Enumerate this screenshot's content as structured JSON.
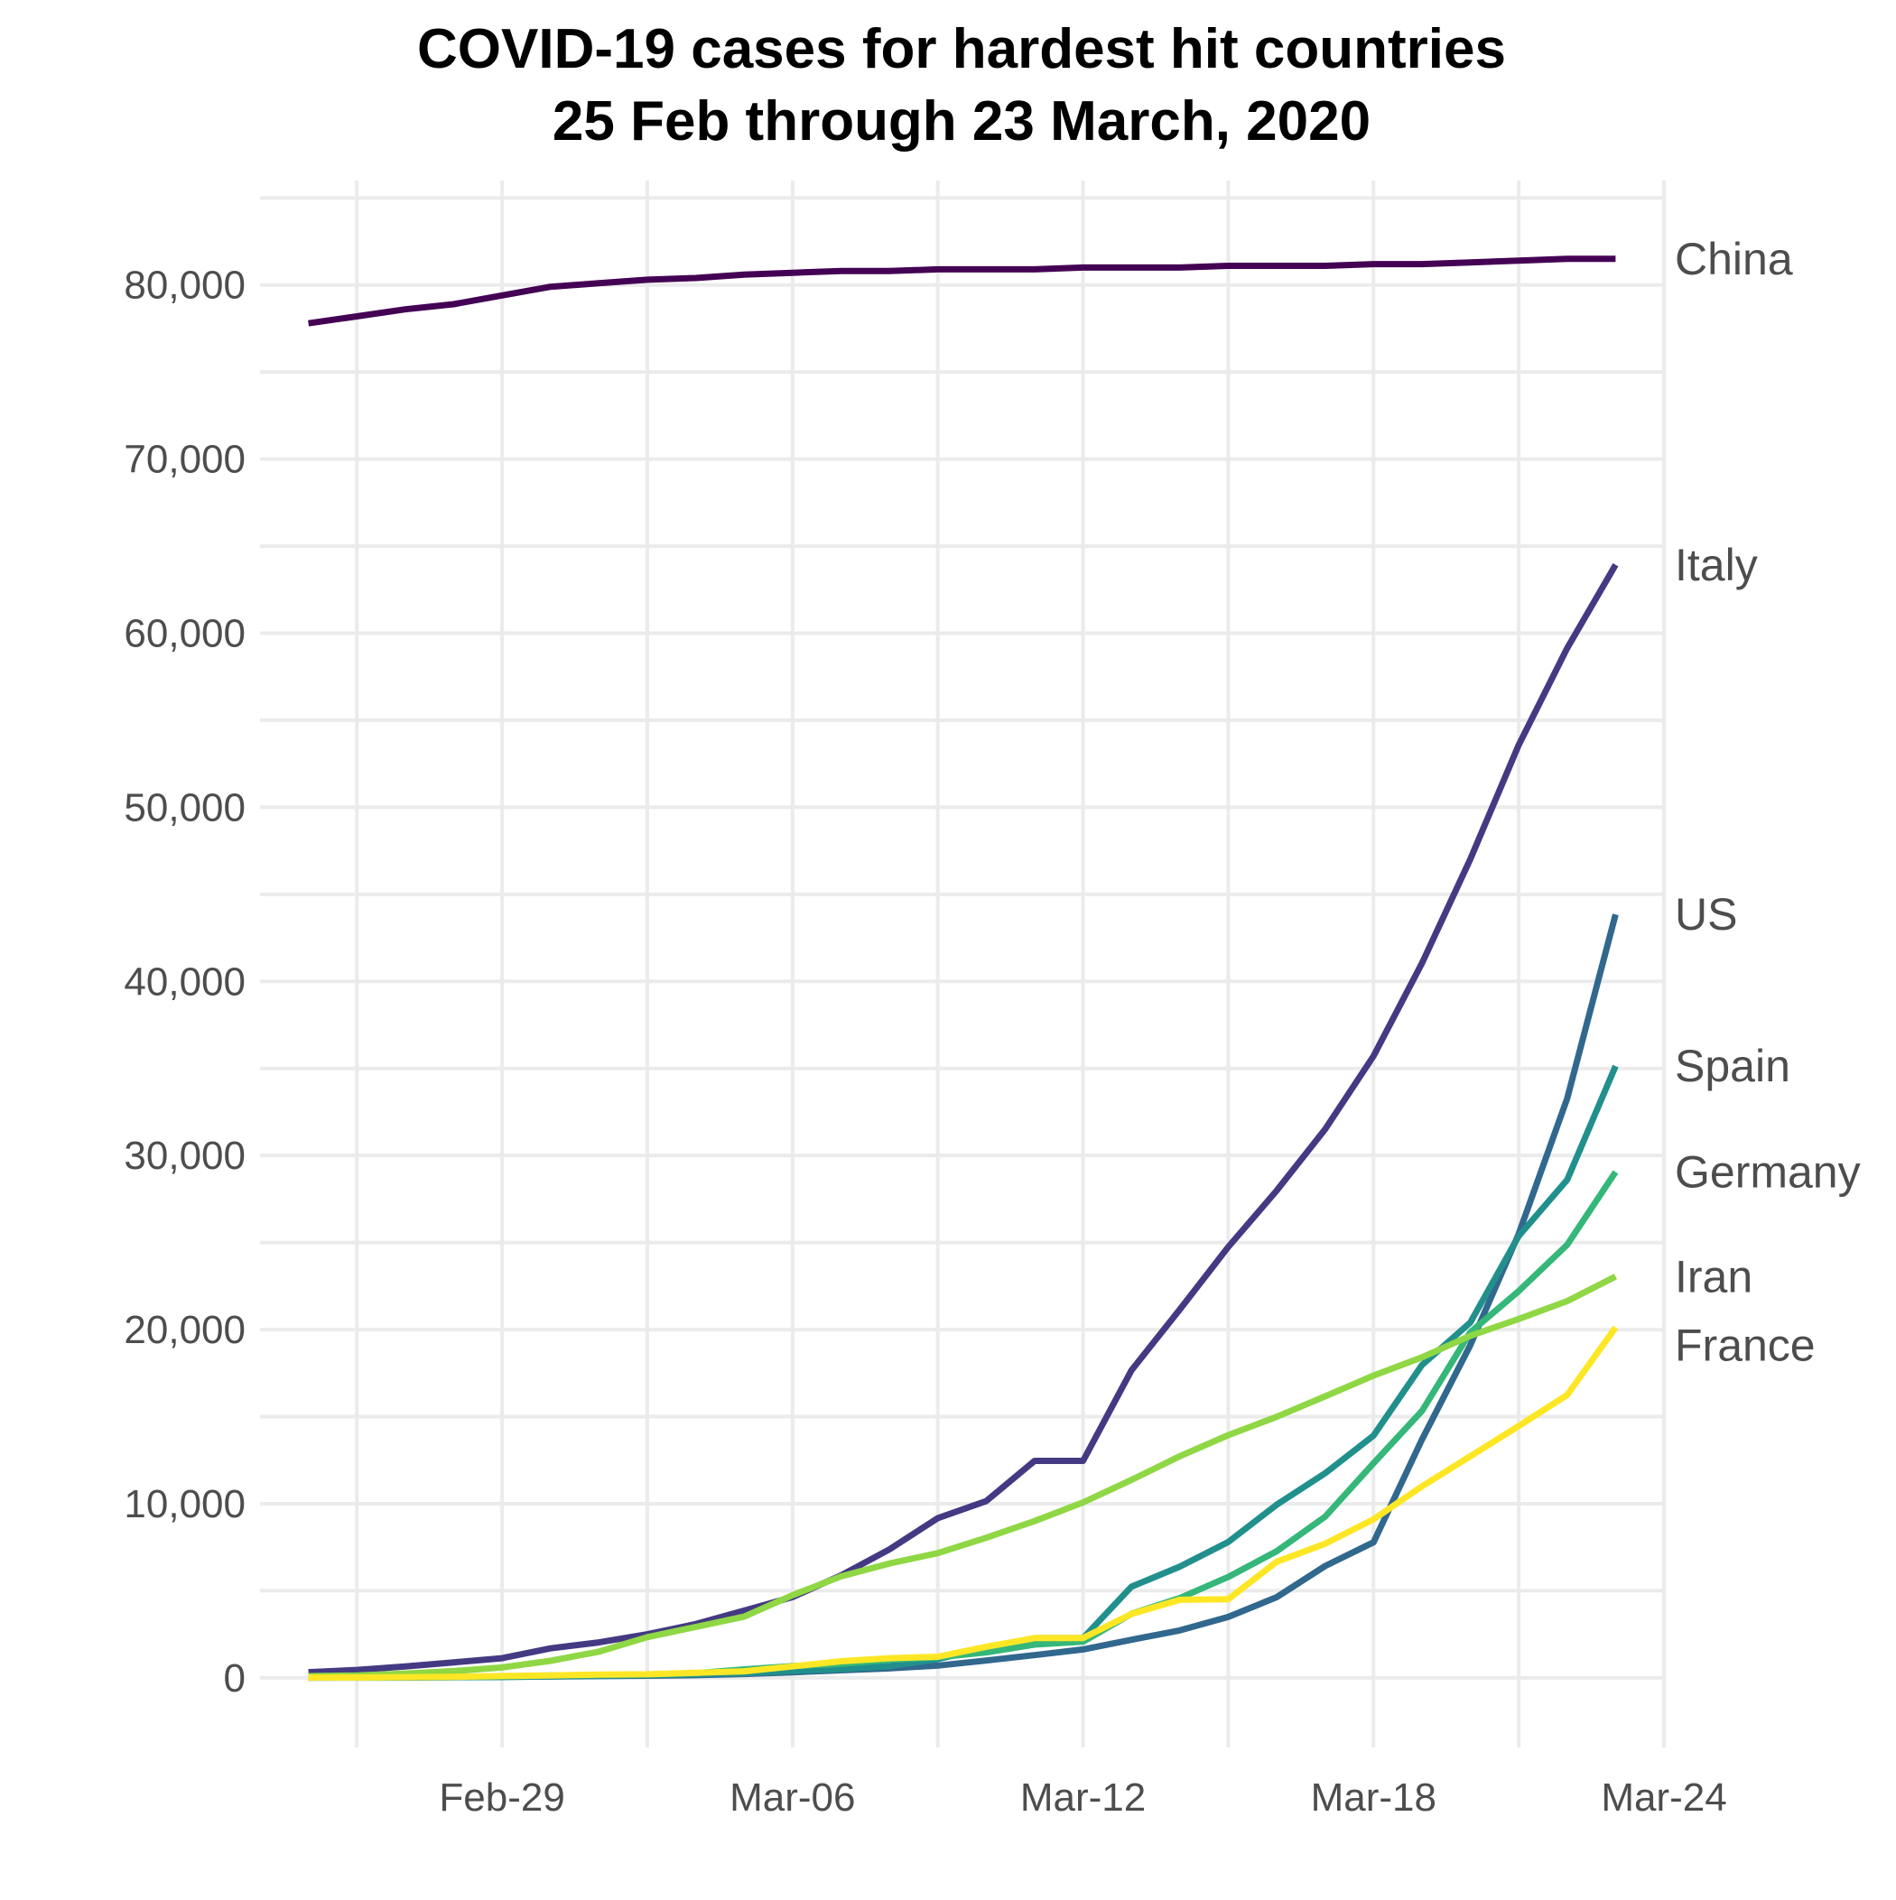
{
  "chart_data": {
    "type": "line",
    "title": [
      "COVID-19 cases for hardest hit countries",
      "25 Feb through 23 March, 2020"
    ],
    "xlabel": "",
    "ylabel": "",
    "x": [
      "2020-02-25",
      "2020-02-26",
      "2020-02-27",
      "2020-02-28",
      "2020-02-29",
      "2020-03-01",
      "2020-03-02",
      "2020-03-03",
      "2020-03-04",
      "2020-03-05",
      "2020-03-06",
      "2020-03-07",
      "2020-03-08",
      "2020-03-09",
      "2020-03-10",
      "2020-03-11",
      "2020-03-12",
      "2020-03-13",
      "2020-03-14",
      "2020-03-15",
      "2020-03-16",
      "2020-03-17",
      "2020-03-18",
      "2020-03-19",
      "2020-03-20",
      "2020-03-21",
      "2020-03-22",
      "2020-03-23"
    ],
    "xlim": [
      "2020-02-24",
      "2020-03-24"
    ],
    "x_ticks": [
      "2020-02-29",
      "2020-03-06",
      "2020-03-12",
      "2020-03-18",
      "2020-03-24"
    ],
    "x_tick_labels": [
      "Feb-29",
      "Mar-06",
      "Mar-12",
      "Mar-18",
      "Mar-24"
    ],
    "ylim": [
      -4000,
      86000
    ],
    "y_ticks": [
      0,
      10000,
      20000,
      30000,
      40000,
      50000,
      60000,
      70000,
      80000
    ],
    "y_tick_labels": [
      "0",
      "10,000",
      "20,000",
      "30,000",
      "40,000",
      "50,000",
      "60,000",
      "70,000",
      "80,000"
    ],
    "grid": true,
    "legend": "direct labels at right end of lines",
    "series": [
      {
        "name": "China",
        "color": "#440154",
        "values": [
          77800,
          78200,
          78600,
          78900,
          79400,
          79900,
          80100,
          80300,
          80400,
          80600,
          80700,
          80800,
          80800,
          80900,
          80900,
          80900,
          81000,
          81000,
          81000,
          81100,
          81100,
          81100,
          81200,
          81200,
          81300,
          81400,
          81500,
          81500
        ]
      },
      {
        "name": "Italy",
        "color": "#443a83",
        "values": [
          322,
          453,
          655,
          888,
          1128,
          1694,
          2036,
          2502,
          3089,
          3858,
          4636,
          5883,
          7375,
          9172,
          10149,
          12462,
          12462,
          17660,
          21157,
          24747,
          27980,
          31506,
          35713,
          41035,
          47021,
          53578,
          59138,
          63927
        ]
      },
      {
        "name": "US",
        "color": "#31688e",
        "values": [
          53,
          59,
          60,
          62,
          70,
          76,
          101,
          122,
          153,
          221,
          319,
          435,
          541,
          704,
          994,
          1301,
          1630,
          2183,
          2726,
          3499,
          4632,
          6421,
          7786,
          13680,
          19101,
          25493,
          33276,
          43847
        ]
      },
      {
        "name": "Spain",
        "color": "#21908d",
        "values": [
          6,
          13,
          15,
          32,
          45,
          84,
          120,
          165,
          222,
          259,
          400,
          500,
          673,
          1073,
          1695,
          2277,
          2277,
          5232,
          6391,
          7798,
          9942,
          11748,
          13910,
          17963,
          20410,
          25374,
          28603,
          35136
        ]
      },
      {
        "name": "Germany",
        "color": "#35b779",
        "values": [
          16,
          18,
          26,
          48,
          79,
          130,
          159,
          196,
          262,
          482,
          670,
          799,
          1040,
          1176,
          1457,
          1908,
          2078,
          3675,
          4585,
          5795,
          7272,
          9257,
          12327,
          15320,
          19848,
          22213,
          24873,
          29056
        ]
      },
      {
        "name": "Iran",
        "color": "#8fd744",
        "values": [
          95,
          139,
          245,
          388,
          593,
          978,
          1501,
          2336,
          2922,
          3513,
          4747,
          5823,
          6566,
          7161,
          8042,
          9000,
          10075,
          11364,
          12729,
          13938,
          14991,
          16169,
          17361,
          18407,
          19644,
          20610,
          21638,
          23049
        ]
      },
      {
        "name": "France",
        "color": "#fde725",
        "values": [
          14,
          18,
          38,
          57,
          100,
          130,
          191,
          204,
          285,
          377,
          653,
          949,
          1126,
          1209,
          1784,
          2284,
          2284,
          3667,
          4480,
          4513,
          6664,
          7699,
          9105,
          10995,
          12726,
          14463,
          16243,
          20123
        ]
      }
    ]
  }
}
